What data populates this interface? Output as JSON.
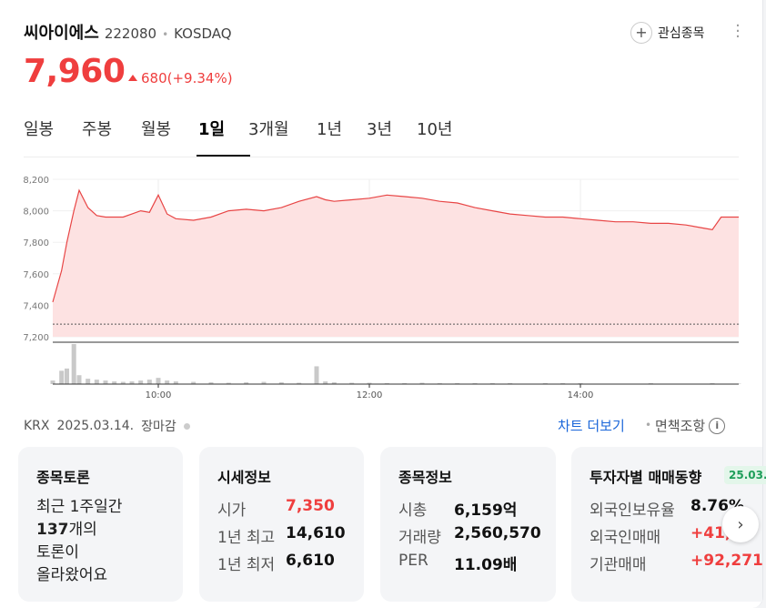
{
  "stock": {
    "name": "씨아이에스",
    "code": "222080",
    "separator": "•",
    "market": "KOSDAQ",
    "watch_label": "관심종목",
    "price": "7,960",
    "change": "680(+9.34%)"
  },
  "tabs": [
    "일봉",
    "주봉",
    "월봉",
    "1일",
    "3개월",
    "1년",
    "3년",
    "10년"
  ],
  "active_tab": "1일",
  "footer": {
    "exchange": "KRX",
    "date": "2025.03.14.",
    "status": "장마감",
    "chart_link": "차트 더보기",
    "dot": "•",
    "disclaimer": "면책조항"
  },
  "cards": {
    "discussion": {
      "title": "종목토론",
      "line1": "최근 1주일간",
      "count": "137",
      "line2": "개의",
      "line3": "토론이",
      "line4": "올라왔어요"
    },
    "quote": {
      "title": "시세정보",
      "rows": [
        {
          "label": "시가",
          "value": "7,350"
        },
        {
          "label": "1년 최고",
          "value": "14,610"
        },
        {
          "label": "1년 최저",
          "value": "6,610"
        }
      ]
    },
    "info": {
      "title": "종목정보",
      "rows": [
        {
          "label": "시총",
          "value": "6,159억"
        },
        {
          "label": "거래량",
          "value": "2,560,570"
        },
        {
          "label": "PER",
          "value": "11.09배"
        }
      ]
    },
    "investor": {
      "title": "투자자별 매매동향",
      "badge": "25.03.",
      "rows": [
        {
          "label": "외국인보유율",
          "value": "8.76%"
        },
        {
          "label": "외국인매매",
          "value": "+41,"
        },
        {
          "label": "기관매매",
          "value": "+92,271"
        }
      ]
    }
  },
  "colors": {
    "up": "#ef3e3e",
    "link": "#1a66d9",
    "line": "#e84545",
    "fill": "#fde2e2",
    "volume": "#c9c9c9",
    "badge": "#1e9e5a"
  },
  "chart_data": {
    "type": "area",
    "yticks": [
      "8,200",
      "8,000",
      "7,800",
      "7,600",
      "7,400",
      "7,200"
    ],
    "ylim": [
      7200,
      8200
    ],
    "xticks": [
      "10:00",
      "12:00",
      "14:00"
    ],
    "x": [
      "09:00",
      "09:05",
      "09:08",
      "09:12",
      "09:15",
      "09:20",
      "09:25",
      "09:30",
      "09:35",
      "09:40",
      "09:45",
      "09:50",
      "09:55",
      "10:00",
      "10:05",
      "10:10",
      "10:20",
      "10:30",
      "10:40",
      "10:50",
      "11:00",
      "11:10",
      "11:20",
      "11:30",
      "11:35",
      "11:40",
      "11:50",
      "12:00",
      "12:10",
      "12:20",
      "12:30",
      "12:40",
      "12:50",
      "13:00",
      "13:10",
      "13:20",
      "13:30",
      "13:40",
      "13:50",
      "14:00",
      "14:10",
      "14:20",
      "14:30",
      "14:40",
      "14:50",
      "15:00",
      "15:10",
      "15:15",
      "15:20",
      "15:30"
    ],
    "price": [
      7420,
      7620,
      7800,
      8000,
      8130,
      8020,
      7970,
      7960,
      7960,
      7960,
      7980,
      8000,
      7990,
      8100,
      7980,
      7950,
      7940,
      7960,
      8000,
      8010,
      8000,
      8020,
      8060,
      8090,
      8070,
      8060,
      8070,
      8080,
      8100,
      8090,
      8080,
      8060,
      8050,
      8020,
      8000,
      7980,
      7970,
      7960,
      7960,
      7950,
      7940,
      7930,
      7930,
      7920,
      7920,
      7910,
      7890,
      7880,
      7960,
      7960
    ],
    "prev_close": 7280,
    "volume": [
      8,
      30,
      35,
      90,
      20,
      12,
      10,
      8,
      6,
      5,
      6,
      8,
      10,
      14,
      8,
      6,
      5,
      4,
      3,
      4,
      5,
      4,
      3,
      40,
      6,
      4,
      3,
      3,
      2,
      2,
      3,
      2,
      2,
      2,
      2,
      2,
      1,
      2,
      2,
      2,
      1,
      1,
      1,
      2,
      1,
      1,
      1,
      2,
      1,
      1
    ]
  }
}
